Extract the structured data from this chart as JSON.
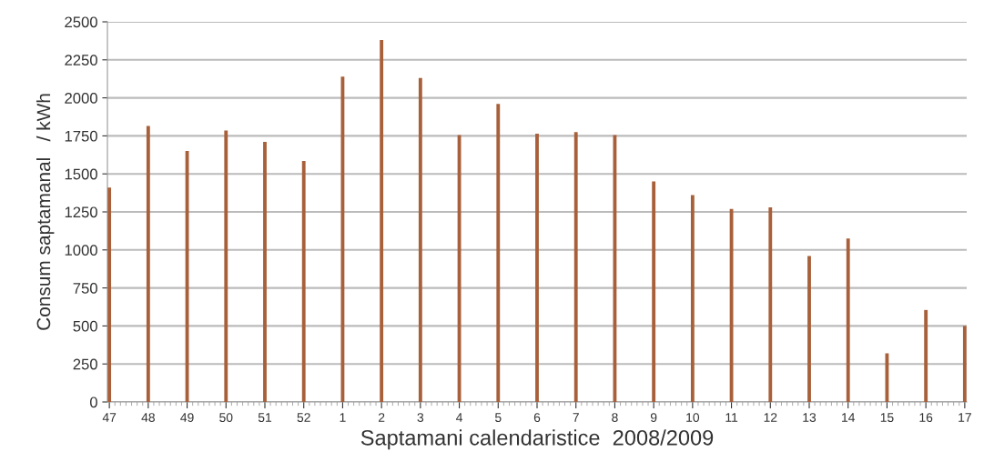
{
  "chart_data": {
    "type": "bar",
    "xlabel": "Saptamani calendaristice  2008/2009",
    "ylabel": "Consum saptamanal   / kWh",
    "categories": [
      "47",
      "48",
      "49",
      "50",
      "51",
      "52",
      "1",
      "2",
      "3",
      "4",
      "5",
      "6",
      "7",
      "8",
      "9",
      "10",
      "11",
      "12",
      "13",
      "14",
      "15",
      "16",
      "17"
    ],
    "values": [
      1410,
      1815,
      1650,
      1785,
      1710,
      1585,
      2140,
      2380,
      2130,
      1755,
      1960,
      1765,
      1775,
      1755,
      1450,
      1360,
      1270,
      1280,
      960,
      1075,
      320,
      605,
      500
    ],
    "color": "#a8603a",
    "ylim": [
      0,
      2500
    ],
    "yticks": [
      0,
      250,
      500,
      750,
      1000,
      1250,
      1500,
      1750,
      2000,
      2250,
      2500
    ],
    "grid": "y"
  }
}
